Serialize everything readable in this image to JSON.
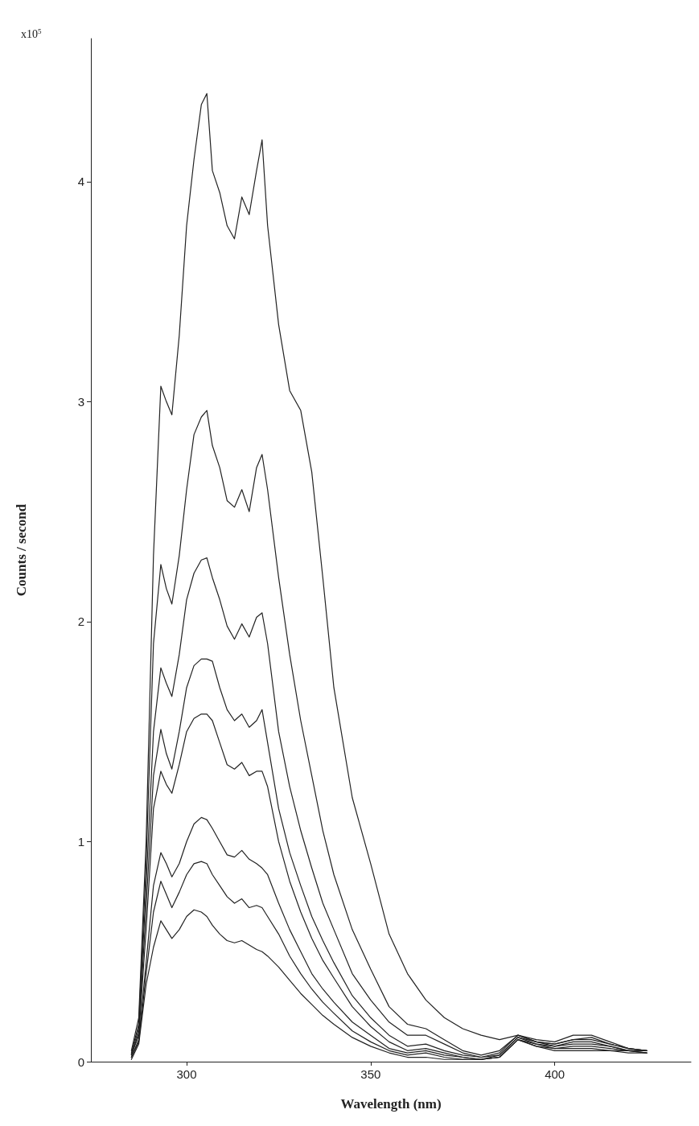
{
  "chart_data": {
    "type": "line",
    "xlabel": "Wavelength (nm)",
    "ylabel": "Counts / second",
    "annotations": [
      "x10$^{5}$"
    ],
    "x": [
      285,
      287,
      289,
      291,
      293,
      294.5,
      296,
      298,
      300,
      302,
      304,
      305.5,
      307,
      309,
      311,
      313,
      315,
      317,
      319,
      320.5,
      322,
      325,
      328,
      331,
      334,
      337,
      340,
      345,
      350,
      355,
      360,
      365,
      370,
      375,
      380,
      385,
      390,
      395,
      400,
      405,
      410,
      415,
      420,
      425
    ],
    "series": [
      {
        "color": "#222222",
        "values": [
          0.05,
          0.2,
          1.0,
          2.3,
          3.07,
          3.0,
          2.94,
          3.3,
          3.8,
          4.1,
          4.35,
          4.4,
          4.05,
          3.95,
          3.8,
          3.74,
          3.93,
          3.85,
          4.05,
          4.19,
          3.8,
          3.35,
          3.05,
          2.96,
          2.68,
          2.2,
          1.7,
          1.2,
          0.9,
          0.58,
          0.4,
          0.28,
          0.2,
          0.15,
          0.12,
          0.1,
          0.12,
          0.1,
          0.09,
          0.12,
          0.12,
          0.09,
          0.06,
          0.05
        ]
      },
      {
        "color": "#222222",
        "values": [
          0.04,
          0.17,
          0.9,
          1.9,
          2.26,
          2.15,
          2.08,
          2.3,
          2.6,
          2.85,
          2.93,
          2.96,
          2.8,
          2.7,
          2.55,
          2.52,
          2.6,
          2.5,
          2.7,
          2.76,
          2.6,
          2.2,
          1.85,
          1.55,
          1.3,
          1.05,
          0.85,
          0.6,
          0.42,
          0.25,
          0.17,
          0.15,
          0.1,
          0.05,
          0.03,
          0.05,
          0.12,
          0.09,
          0.08,
          0.1,
          0.11,
          0.08,
          0.06,
          0.05
        ]
      },
      {
        "color": "#222222",
        "values": [
          0.035,
          0.15,
          0.8,
          1.5,
          1.79,
          1.72,
          1.66,
          1.85,
          2.1,
          2.22,
          2.28,
          2.29,
          2.2,
          2.1,
          1.98,
          1.92,
          1.99,
          1.93,
          2.02,
          2.04,
          1.9,
          1.5,
          1.25,
          1.05,
          0.88,
          0.72,
          0.6,
          0.4,
          0.28,
          0.18,
          0.12,
          0.12,
          0.08,
          0.04,
          0.02,
          0.04,
          0.12,
          0.09,
          0.08,
          0.1,
          0.1,
          0.08,
          0.06,
          0.05
        ]
      },
      {
        "color": "#222222",
        "values": [
          0.03,
          0.13,
          0.7,
          1.3,
          1.51,
          1.4,
          1.33,
          1.5,
          1.7,
          1.8,
          1.83,
          1.83,
          1.82,
          1.7,
          1.6,
          1.55,
          1.58,
          1.52,
          1.55,
          1.6,
          1.45,
          1.15,
          0.95,
          0.8,
          0.66,
          0.55,
          0.45,
          0.3,
          0.2,
          0.12,
          0.07,
          0.08,
          0.05,
          0.03,
          0.02,
          0.03,
          0.11,
          0.09,
          0.07,
          0.09,
          0.09,
          0.07,
          0.05,
          0.05
        ]
      },
      {
        "color": "#222222",
        "values": [
          0.03,
          0.12,
          0.6,
          1.15,
          1.32,
          1.26,
          1.22,
          1.35,
          1.5,
          1.56,
          1.58,
          1.58,
          1.55,
          1.45,
          1.35,
          1.33,
          1.36,
          1.3,
          1.32,
          1.32,
          1.25,
          1.0,
          0.82,
          0.68,
          0.56,
          0.46,
          0.38,
          0.25,
          0.16,
          0.09,
          0.05,
          0.06,
          0.04,
          0.02,
          0.01,
          0.03,
          0.11,
          0.08,
          0.07,
          0.08,
          0.08,
          0.07,
          0.05,
          0.05
        ]
      },
      {
        "color": "#222222",
        "values": [
          0.02,
          0.1,
          0.45,
          0.8,
          0.95,
          0.9,
          0.84,
          0.9,
          1.0,
          1.08,
          1.11,
          1.1,
          1.06,
          1.0,
          0.94,
          0.93,
          0.96,
          0.92,
          0.9,
          0.88,
          0.85,
          0.72,
          0.6,
          0.5,
          0.4,
          0.33,
          0.27,
          0.18,
          0.12,
          0.06,
          0.04,
          0.05,
          0.03,
          0.02,
          0.01,
          0.02,
          0.1,
          0.08,
          0.06,
          0.07,
          0.07,
          0.06,
          0.05,
          0.04
        ]
      },
      {
        "color": "#222222",
        "values": [
          0.02,
          0.09,
          0.4,
          0.68,
          0.82,
          0.76,
          0.7,
          0.77,
          0.85,
          0.9,
          0.91,
          0.9,
          0.85,
          0.8,
          0.75,
          0.72,
          0.74,
          0.7,
          0.71,
          0.7,
          0.66,
          0.58,
          0.48,
          0.4,
          0.33,
          0.27,
          0.22,
          0.14,
          0.09,
          0.05,
          0.03,
          0.04,
          0.02,
          0.01,
          0.01,
          0.02,
          0.1,
          0.07,
          0.06,
          0.06,
          0.06,
          0.05,
          0.05,
          0.04
        ]
      },
      {
        "color": "#222222",
        "values": [
          0.01,
          0.08,
          0.35,
          0.52,
          0.64,
          0.6,
          0.56,
          0.6,
          0.66,
          0.69,
          0.68,
          0.66,
          0.62,
          0.58,
          0.55,
          0.54,
          0.55,
          0.53,
          0.51,
          0.5,
          0.48,
          0.43,
          0.37,
          0.31,
          0.26,
          0.21,
          0.17,
          0.11,
          0.07,
          0.04,
          0.02,
          0.02,
          0.01,
          0.01,
          0.01,
          0.02,
          0.1,
          0.07,
          0.05,
          0.05,
          0.05,
          0.05,
          0.04,
          0.04
        ]
      }
    ],
    "xlim": [
      274,
      437
    ],
    "xticks": [
      300,
      350,
      400
    ],
    "ylim": [
      0,
      4.65
    ],
    "yticks": [
      0,
      1,
      2,
      3,
      4
    ],
    "grid": false,
    "marker": "none",
    "line_style": "solid"
  }
}
